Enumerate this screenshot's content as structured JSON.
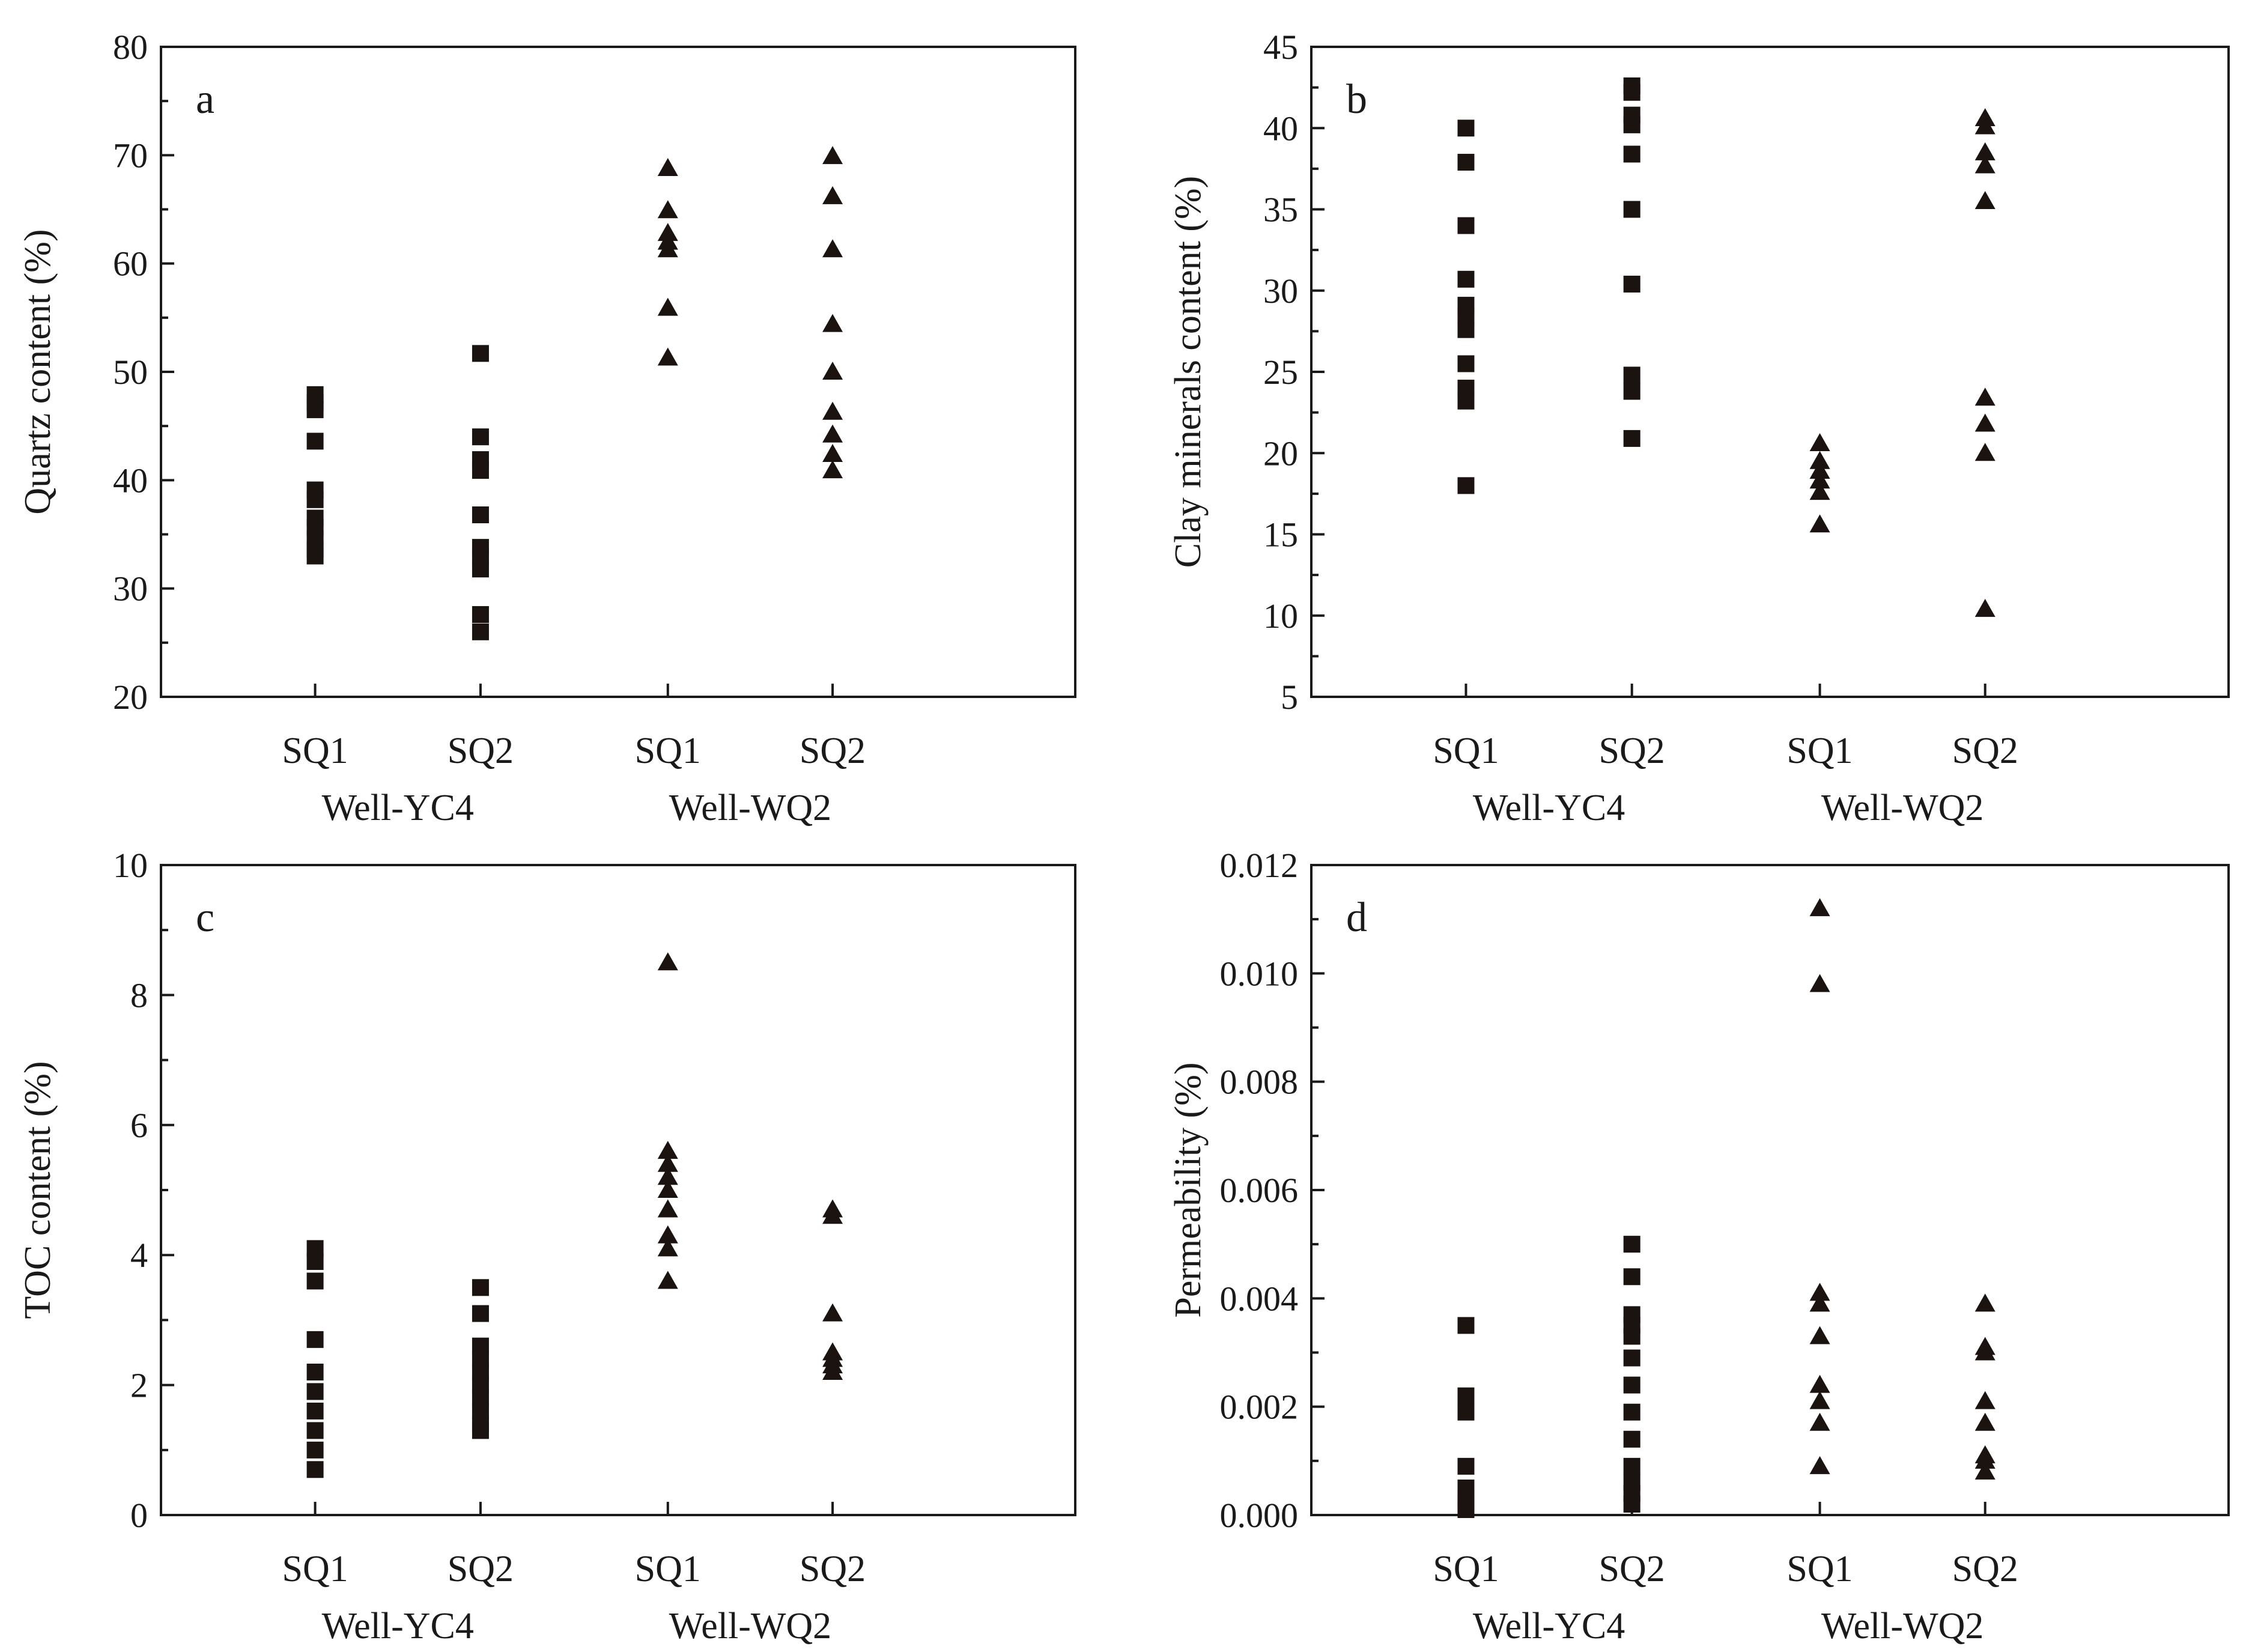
{
  "chart_data": [
    {
      "type": "scatter",
      "panel_label": "a",
      "ylabel": "Quartz content (%)",
      "ylim": [
        20,
        80
      ],
      "yticks": [
        "20",
        "30",
        "40",
        "50",
        "60",
        "70",
        "80"
      ],
      "groups": [
        {
          "name": "Well-YC4",
          "categories": [
            "SQ1",
            "SQ2"
          ],
          "marker": "square"
        },
        {
          "name": "Well-WQ2",
          "categories": [
            "SQ1",
            "SQ2"
          ],
          "marker": "triangle"
        }
      ],
      "series": [
        {
          "name": "Well-YC4 SQ1",
          "values": [
            47.9,
            47.2,
            46.5,
            43.6,
            39.1,
            38.2,
            36.5,
            35.6,
            34.6,
            33.6,
            33.0
          ]
        },
        {
          "name": "Well-YC4 SQ2",
          "values": [
            51.7,
            44.0,
            41.9,
            40.9,
            36.8,
            33.8,
            32.9,
            31.8,
            27.6,
            26.0
          ]
        },
        {
          "name": "Well-WQ2 SQ1",
          "values": [
            68.8,
            64.9,
            62.8,
            62.0,
            61.3,
            55.9,
            51.3
          ]
        },
        {
          "name": "Well-WQ2 SQ2",
          "values": [
            69.9,
            66.2,
            61.3,
            54.4,
            50.0,
            46.3,
            44.2,
            42.4,
            40.9
          ]
        }
      ]
    },
    {
      "type": "scatter",
      "panel_label": "b",
      "ylabel": "Clay minerals content (%)",
      "ylim": [
        5,
        45
      ],
      "yticks": [
        "5",
        "10",
        "15",
        "20",
        "25",
        "30",
        "35",
        "40",
        "45"
      ],
      "groups": [
        {
          "name": "Well-YC4",
          "categories": [
            "SQ1",
            "SQ2"
          ],
          "marker": "square"
        },
        {
          "name": "Well-WQ2",
          "categories": [
            "SQ1",
            "SQ2"
          ],
          "marker": "triangle"
        }
      ],
      "series": [
        {
          "name": "Well-YC4 SQ1",
          "values": [
            40.0,
            37.9,
            34.0,
            30.7,
            29.1,
            28.4,
            27.6,
            25.5,
            24.0,
            23.2,
            18.0
          ]
        },
        {
          "name": "Well-YC4 SQ2",
          "values": [
            42.6,
            42.2,
            40.8,
            40.2,
            38.4,
            35.0,
            30.4,
            24.8,
            23.8,
            20.9
          ]
        },
        {
          "name": "Well-WQ2 SQ1",
          "values": [
            20.6,
            19.5,
            18.9,
            18.3,
            17.6,
            15.6
          ]
        },
        {
          "name": "Well-WQ2 SQ2",
          "values": [
            40.6,
            40.1,
            38.5,
            37.7,
            35.5,
            23.4,
            21.8,
            20.0,
            10.4
          ]
        }
      ]
    },
    {
      "type": "scatter",
      "panel_label": "c",
      "ylabel": "TOC content (%)",
      "ylim": [
        0,
        10
      ],
      "yticks": [
        "0",
        "2",
        "4",
        "6",
        "8",
        "10"
      ],
      "groups": [
        {
          "name": "Well-YC4",
          "categories": [
            "SQ1",
            "SQ2"
          ],
          "marker": "square"
        },
        {
          "name": "Well-WQ2",
          "categories": [
            "SQ1",
            "SQ2"
          ],
          "marker": "triangle"
        }
      ],
      "series": [
        {
          "name": "Well-YC4 SQ1",
          "values": [
            4.1,
            3.9,
            3.6,
            2.7,
            2.2,
            1.9,
            1.6,
            1.3,
            1.0,
            0.7
          ]
        },
        {
          "name": "Well-YC4 SQ2",
          "values": [
            3.5,
            3.1,
            2.6,
            2.4,
            2.2,
            2.0,
            1.8,
            1.6,
            1.4,
            1.3
          ]
        },
        {
          "name": "Well-WQ2 SQ1",
          "values": [
            8.5,
            5.6,
            5.4,
            5.2,
            5.0,
            4.7,
            4.3,
            4.1,
            3.6
          ]
        },
        {
          "name": "Well-WQ2 SQ2",
          "values": [
            4.7,
            4.6,
            3.1,
            2.5,
            2.4,
            2.3,
            2.2
          ]
        }
      ]
    },
    {
      "type": "scatter",
      "panel_label": "d",
      "ylabel": "Permeability (%)",
      "ylim": [
        0,
        0.012
      ],
      "yticks": [
        "0.000",
        "0.002",
        "0.004",
        "0.006",
        "0.008",
        "0.010",
        "0.012"
      ],
      "groups": [
        {
          "name": "Well-YC4",
          "categories": [
            "SQ1",
            "SQ2"
          ],
          "marker": "square"
        },
        {
          "name": "Well-WQ2",
          "categories": [
            "SQ1",
            "SQ2"
          ],
          "marker": "triangle"
        }
      ],
      "series": [
        {
          "name": "Well-YC4 SQ1",
          "values": [
            0.0035,
            0.0022,
            0.0019,
            0.0009,
            0.0005,
            0.0003,
            0.0002,
            0.0001
          ]
        },
        {
          "name": "Well-YC4 SQ2",
          "values": [
            0.005,
            0.0044,
            0.0037,
            0.0035,
            0.0033,
            0.0029,
            0.0024,
            0.0019,
            0.0014,
            0.0009,
            0.0006,
            0.0004,
            0.0002
          ]
        },
        {
          "name": "Well-WQ2 SQ1",
          "values": [
            0.0112,
            0.0098,
            0.0041,
            0.0039,
            0.0033,
            0.0024,
            0.0021,
            0.0017,
            0.0009
          ]
        },
        {
          "name": "Well-WQ2 SQ2",
          "values": [
            0.0039,
            0.0031,
            0.003,
            0.0021,
            0.0017,
            0.0011,
            0.001,
            0.0008
          ]
        }
      ]
    }
  ]
}
